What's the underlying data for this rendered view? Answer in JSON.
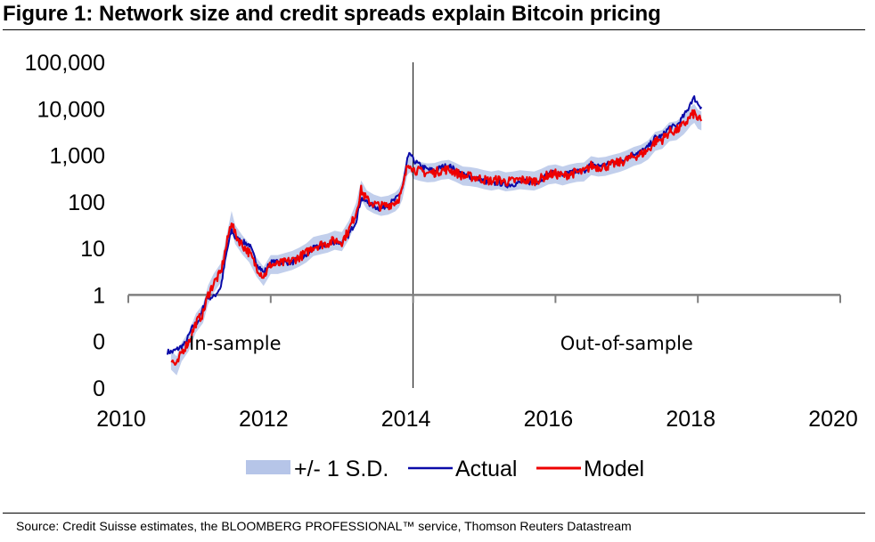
{
  "title": "Figure 1: Network size and credit spreads explain Bitcoin pricing",
  "source": "Source: Credit Suisse estimates, the BLOOMBERG PROFESSIONAL™ service, Thomson Reuters Datastream",
  "colors": {
    "actual": "#0a0aa8",
    "model": "#ee0000",
    "band": "#aebfe6"
  },
  "chart_data": {
    "type": "line",
    "y_scale": "log",
    "ylim": [
      0.01,
      100000
    ],
    "xlim": [
      2010,
      2020
    ],
    "y_ticks": [
      {
        "value": 100000,
        "label": "100,000"
      },
      {
        "value": 10000,
        "label": "10,000"
      },
      {
        "value": 1000,
        "label": "1,000"
      },
      {
        "value": 100,
        "label": "100"
      },
      {
        "value": 10,
        "label": "10"
      },
      {
        "value": 1,
        "label": "1"
      },
      {
        "value": 0.1,
        "label": "0"
      },
      {
        "value": 0.01,
        "label": "0"
      }
    ],
    "x_ticks": [
      {
        "value": 2010,
        "label": "2010"
      },
      {
        "value": 2012,
        "label": "2012"
      },
      {
        "value": 2014,
        "label": "2014"
      },
      {
        "value": 2016,
        "label": "2016"
      },
      {
        "value": 2018,
        "label": "2018"
      },
      {
        "value": 2020,
        "label": "2020"
      }
    ],
    "split_year": 2014,
    "annotations": [
      {
        "text": "In-sample",
        "x": 2011.5,
        "y": 0.08
      },
      {
        "text": "Out-of-sample",
        "x": 2017.0,
        "y": 0.08
      }
    ],
    "legend": [
      "+/- 1 S.D.",
      "Actual",
      "Model"
    ],
    "band_sd_factor": 1.6,
    "series": [
      {
        "name": "Actual",
        "x": [
          2010.55,
          2010.62,
          2010.7,
          2010.8,
          2010.9,
          2011.0,
          2011.1,
          2011.2,
          2011.3,
          2011.38,
          2011.45,
          2011.5,
          2011.6,
          2011.7,
          2011.8,
          2011.9,
          2012.0,
          2012.1,
          2012.2,
          2012.3,
          2012.4,
          2012.5,
          2012.6,
          2012.7,
          2012.8,
          2012.9,
          2013.0,
          2013.1,
          2013.2,
          2013.27,
          2013.35,
          2013.45,
          2013.55,
          2013.65,
          2013.75,
          2013.8,
          2013.85,
          2013.92,
          2013.96,
          2014.0,
          2014.1,
          2014.2,
          2014.3,
          2014.4,
          2014.5,
          2014.6,
          2014.7,
          2014.8,
          2014.9,
          2015.0,
          2015.1,
          2015.2,
          2015.3,
          2015.4,
          2015.5,
          2015.6,
          2015.7,
          2015.8,
          2015.9,
          2016.0,
          2016.1,
          2016.2,
          2016.3,
          2016.4,
          2016.5,
          2016.6,
          2016.7,
          2016.8,
          2016.9,
          2017.0,
          2017.1,
          2017.2,
          2017.3,
          2017.4,
          2017.5,
          2017.6,
          2017.7,
          2017.8,
          2017.85,
          2017.9,
          2017.95,
          2018.0,
          2018.05
        ],
        "values": [
          0.06,
          0.06,
          0.07,
          0.09,
          0.2,
          0.3,
          0.9,
          0.9,
          1.5,
          8,
          25,
          17,
          14,
          12,
          5,
          3,
          5,
          5,
          5,
          5,
          6,
          7,
          10,
          11,
          12,
          14,
          13,
          20,
          40,
          120,
          100,
          80,
          70,
          90,
          110,
          140,
          200,
          800,
          1100,
          800,
          600,
          500,
          470,
          560,
          600,
          480,
          380,
          350,
          320,
          280,
          240,
          260,
          230,
          240,
          260,
          270,
          260,
          300,
          400,
          420,
          380,
          420,
          450,
          460,
          650,
          600,
          620,
          700,
          750,
          900,
          1100,
          1200,
          1500,
          2400,
          2600,
          4000,
          4200,
          7000,
          9000,
          14000,
          17000,
          13000,
          11000
        ]
      },
      {
        "name": "Model",
        "x": [
          2010.6,
          2010.68,
          2010.75,
          2010.85,
          2010.95,
          2011.05,
          2011.12,
          2011.2,
          2011.3,
          2011.38,
          2011.45,
          2011.5,
          2011.6,
          2011.7,
          2011.8,
          2011.9,
          2012.0,
          2012.1,
          2012.2,
          2012.3,
          2012.4,
          2012.5,
          2012.6,
          2012.7,
          2012.8,
          2012.9,
          2013.0,
          2013.1,
          2013.2,
          2013.27,
          2013.35,
          2013.45,
          2013.55,
          2013.65,
          2013.75,
          2013.8,
          2013.85,
          2013.92,
          2013.96,
          2014.0,
          2014.1,
          2014.2,
          2014.3,
          2014.4,
          2014.5,
          2014.6,
          2014.7,
          2014.8,
          2014.9,
          2015.0,
          2015.1,
          2015.2,
          2015.3,
          2015.4,
          2015.5,
          2015.6,
          2015.7,
          2015.8,
          2015.9,
          2016.0,
          2016.1,
          2016.2,
          2016.3,
          2016.4,
          2016.5,
          2016.6,
          2016.7,
          2016.8,
          2016.9,
          2017.0,
          2017.1,
          2017.2,
          2017.3,
          2017.4,
          2017.5,
          2017.6,
          2017.7,
          2017.8,
          2017.85,
          2017.9,
          2017.95,
          2018.0,
          2018.05
        ],
        "values": [
          0.04,
          0.03,
          0.06,
          0.1,
          0.25,
          0.4,
          1.0,
          1.8,
          3,
          12,
          40,
          20,
          12,
          8,
          4,
          2.5,
          4.5,
          4.5,
          5,
          5.5,
          6.5,
          8,
          11,
          12,
          13,
          15,
          14,
          25,
          60,
          180,
          110,
          90,
          80,
          85,
          100,
          120,
          180,
          600,
          700,
          500,
          450,
          420,
          430,
          480,
          500,
          430,
          360,
          350,
          330,
          300,
          280,
          300,
          270,
          280,
          300,
          290,
          280,
          320,
          380,
          400,
          360,
          400,
          430,
          440,
          600,
          560,
          580,
          640,
          700,
          800,
          950,
          1050,
          1300,
          2000,
          2200,
          3200,
          3400,
          4500,
          5500,
          7000,
          8000,
          6000,
          5500
        ]
      }
    ]
  }
}
